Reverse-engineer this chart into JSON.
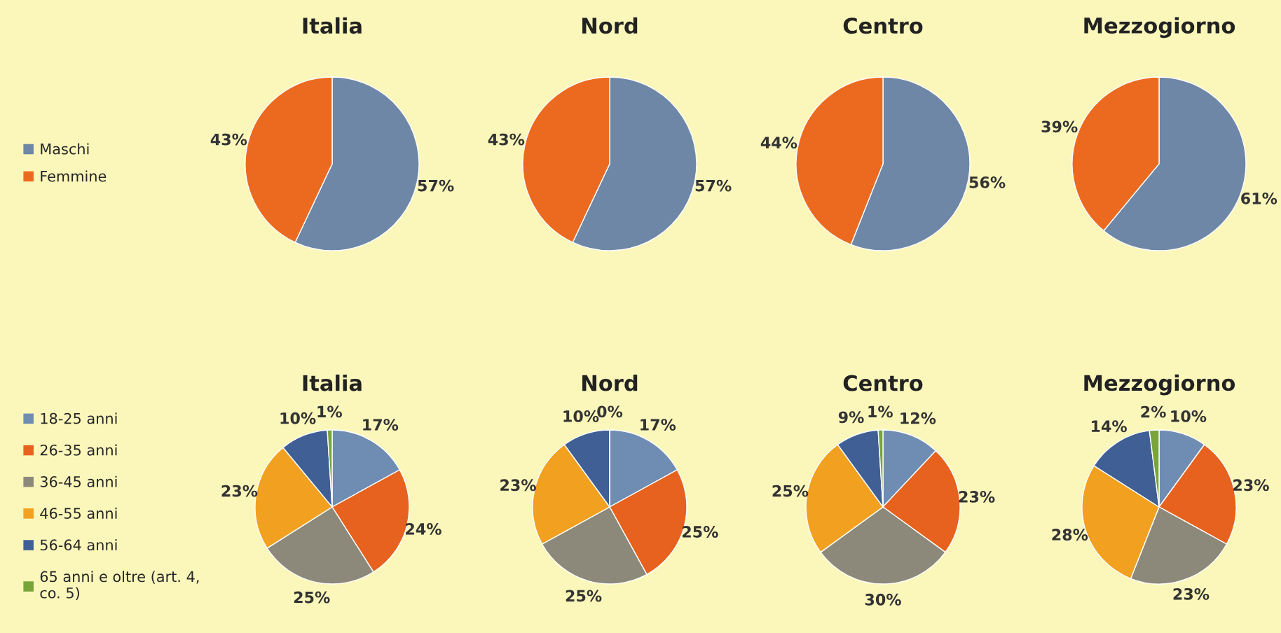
{
  "chart_data": [
    {
      "type": "pie",
      "title": "Italia",
      "categories": [
        "Maschi",
        "Femmine"
      ],
      "values": [
        57,
        43
      ],
      "colors": [
        "#6e87a6",
        "#ec6a1f"
      ],
      "value_labels": [
        "57%",
        "43%"
      ],
      "legend": "left"
    },
    {
      "type": "pie",
      "title": "Nord",
      "values": [
        57,
        43
      ],
      "colors": [
        "#6e87a6",
        "#ec6a1f"
      ],
      "value_labels": [
        "57%",
        "43%"
      ]
    },
    {
      "type": "pie",
      "title": "Centro",
      "values": [
        56,
        44
      ],
      "colors": [
        "#6e87a6",
        "#ec6a1f"
      ],
      "value_labels": [
        "56%",
        "44%"
      ]
    },
    {
      "type": "pie",
      "title": "Mezzogiorno",
      "values": [
        61,
        39
      ],
      "colors": [
        "#6e87a6",
        "#ec6a1f"
      ],
      "value_labels": [
        "61%",
        "39%"
      ]
    },
    {
      "type": "pie",
      "title": "Italia",
      "categories": [
        "18-25 anni",
        "26-35 anni",
        "36-45 anni",
        "46-55 anni",
        "56-64 anni",
        "65 anni e oltre (art. 4,\nco. 5)"
      ],
      "values": [
        17,
        24,
        25,
        23,
        10,
        1
      ],
      "colors": [
        "#6f8db3",
        "#e6621e",
        "#8c897b",
        "#f2a01f",
        "#3f5f95",
        "#78a53a"
      ],
      "value_labels": [
        "17%",
        "24%",
        "25%",
        "23%",
        "10%",
        "1%"
      ],
      "legend": "left"
    },
    {
      "type": "pie",
      "title": "Nord",
      "values": [
        17,
        25,
        25,
        23,
        10,
        0
      ],
      "colors": [
        "#6f8db3",
        "#e6621e",
        "#8c897b",
        "#f2a01f",
        "#3f5f95",
        "#78a53a"
      ],
      "value_labels": [
        "17%",
        "25%",
        "25%",
        "23%",
        "10%",
        "0%"
      ]
    },
    {
      "type": "pie",
      "title": "Centro",
      "values": [
        12,
        23,
        30,
        25,
        9,
        1
      ],
      "colors": [
        "#6f8db3",
        "#e6621e",
        "#8c897b",
        "#f2a01f",
        "#3f5f95",
        "#78a53a"
      ],
      "value_labels": [
        "12%",
        "23%",
        "30%",
        "25%",
        "9%",
        "1%"
      ]
    },
    {
      "type": "pie",
      "title": "Mezzogiorno",
      "values": [
        10,
        23,
        23,
        28,
        14,
        2
      ],
      "colors": [
        "#6f8db3",
        "#e6621e",
        "#8c897b",
        "#f2a01f",
        "#3f5f95",
        "#78a53a"
      ],
      "value_labels": [
        "10%",
        "23%",
        "23%",
        "28%",
        "14%",
        "2%"
      ]
    }
  ]
}
